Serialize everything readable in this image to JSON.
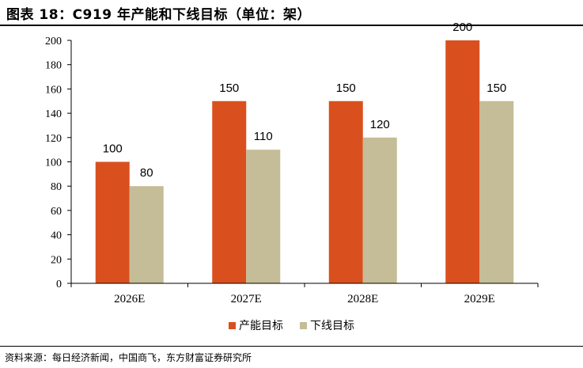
{
  "title": "图表 18：C919 年产能和下线目标（单位：架）",
  "source": "资料来源：每日经济新闻，中国商飞，东方财富证券研究所",
  "colors": {
    "series1": "#D9501E",
    "series2": "#C4BD97"
  },
  "chart_data": {
    "type": "bar",
    "title": "图表 18：C919 年产能和下线目标（单位：架）",
    "categories": [
      "2026E",
      "2027E",
      "2028E",
      "2029E"
    ],
    "series": [
      {
        "name": "产能目标",
        "values": [
          100,
          150,
          150,
          200
        ]
      },
      {
        "name": "下线目标",
        "values": [
          80,
          110,
          120,
          150
        ]
      }
    ],
    "yticks": [
      0,
      20,
      40,
      60,
      80,
      100,
      120,
      140,
      160,
      180,
      200
    ],
    "ylim": [
      0,
      200
    ],
    "xlabel": "",
    "ylabel": "",
    "grid": false,
    "legend": "bottom"
  }
}
